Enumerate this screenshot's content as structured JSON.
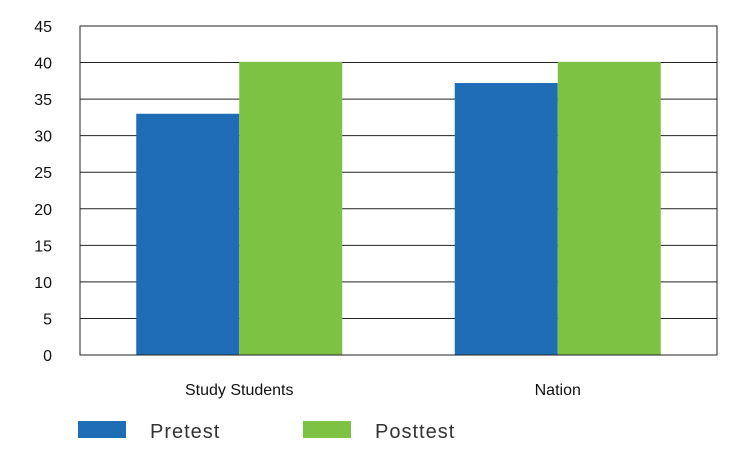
{
  "chart_data": {
    "type": "bar",
    "categories": [
      "Study Students",
      "Nation"
    ],
    "series": [
      {
        "name": "Pretest",
        "values": [
          33,
          37.2
        ],
        "color": "#1f6db4"
      },
      {
        "name": "Posttest",
        "values": [
          40.1,
          40.1
        ],
        "color": "#7dc243"
      }
    ],
    "title": "",
    "xlabel": "",
    "ylabel": "",
    "ylim": [
      0,
      45
    ],
    "yticks": [
      0,
      5,
      10,
      15,
      20,
      25,
      30,
      35,
      40,
      45
    ],
    "grid": true,
    "legend_position": "bottom-left"
  }
}
